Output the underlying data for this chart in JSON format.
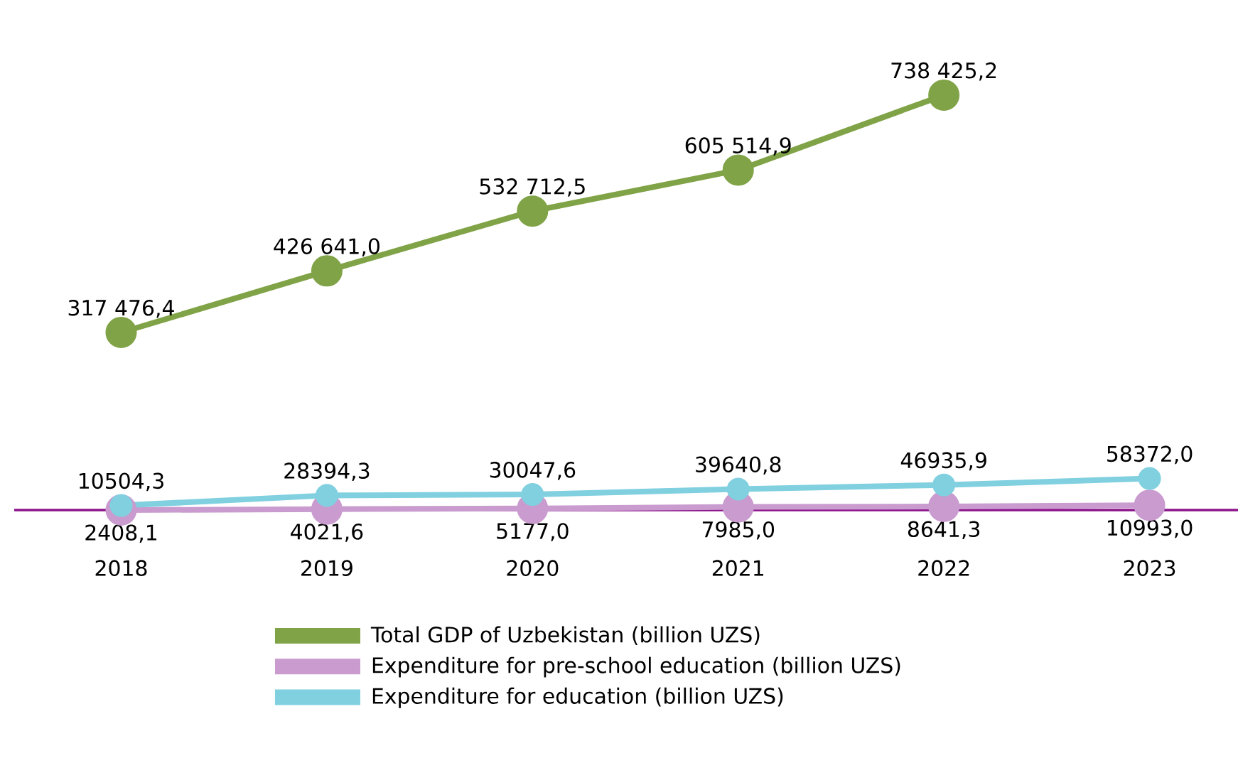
{
  "chart_data": {
    "type": "line",
    "categories": [
      "2018",
      "2019",
      "2020",
      "2021",
      "2022",
      "2023"
    ],
    "series": [
      {
        "name": "Total GDP of Uzbekistan (billion UZS)",
        "color": "#7fa346",
        "values": [
          317476.4,
          426641.0,
          532712.5,
          605514.9,
          738425.2,
          null
        ],
        "value_labels": [
          "317 476,4",
          "426 641,0",
          "532 712,5",
          "605 514,9",
          "738 425,2",
          null
        ]
      },
      {
        "name": "Expenditure for pre-school education (billion UZS)",
        "color": "#c99bcf",
        "values": [
          2408.1,
          4021.6,
          5177.0,
          7985.0,
          8641.3,
          10993.0
        ],
        "value_labels": [
          "2408,1",
          "4021,6",
          "5177,0",
          "7985,0",
          "8641,3",
          "10993,0"
        ]
      },
      {
        "name": "Expenditure for education (billion UZS)",
        "color": "#80d0e0",
        "values": [
          10504.3,
          28394.3,
          30047.6,
          39640.8,
          46935.9,
          58372.0
        ],
        "value_labels": [
          "10504,3",
          "28394,3",
          "30047,6",
          "39640,8",
          "46935,9",
          "58372,0"
        ]
      }
    ],
    "tick_labels": "x",
    "legend": "bottom",
    "marker": "circle",
    "line_style": "solid"
  }
}
